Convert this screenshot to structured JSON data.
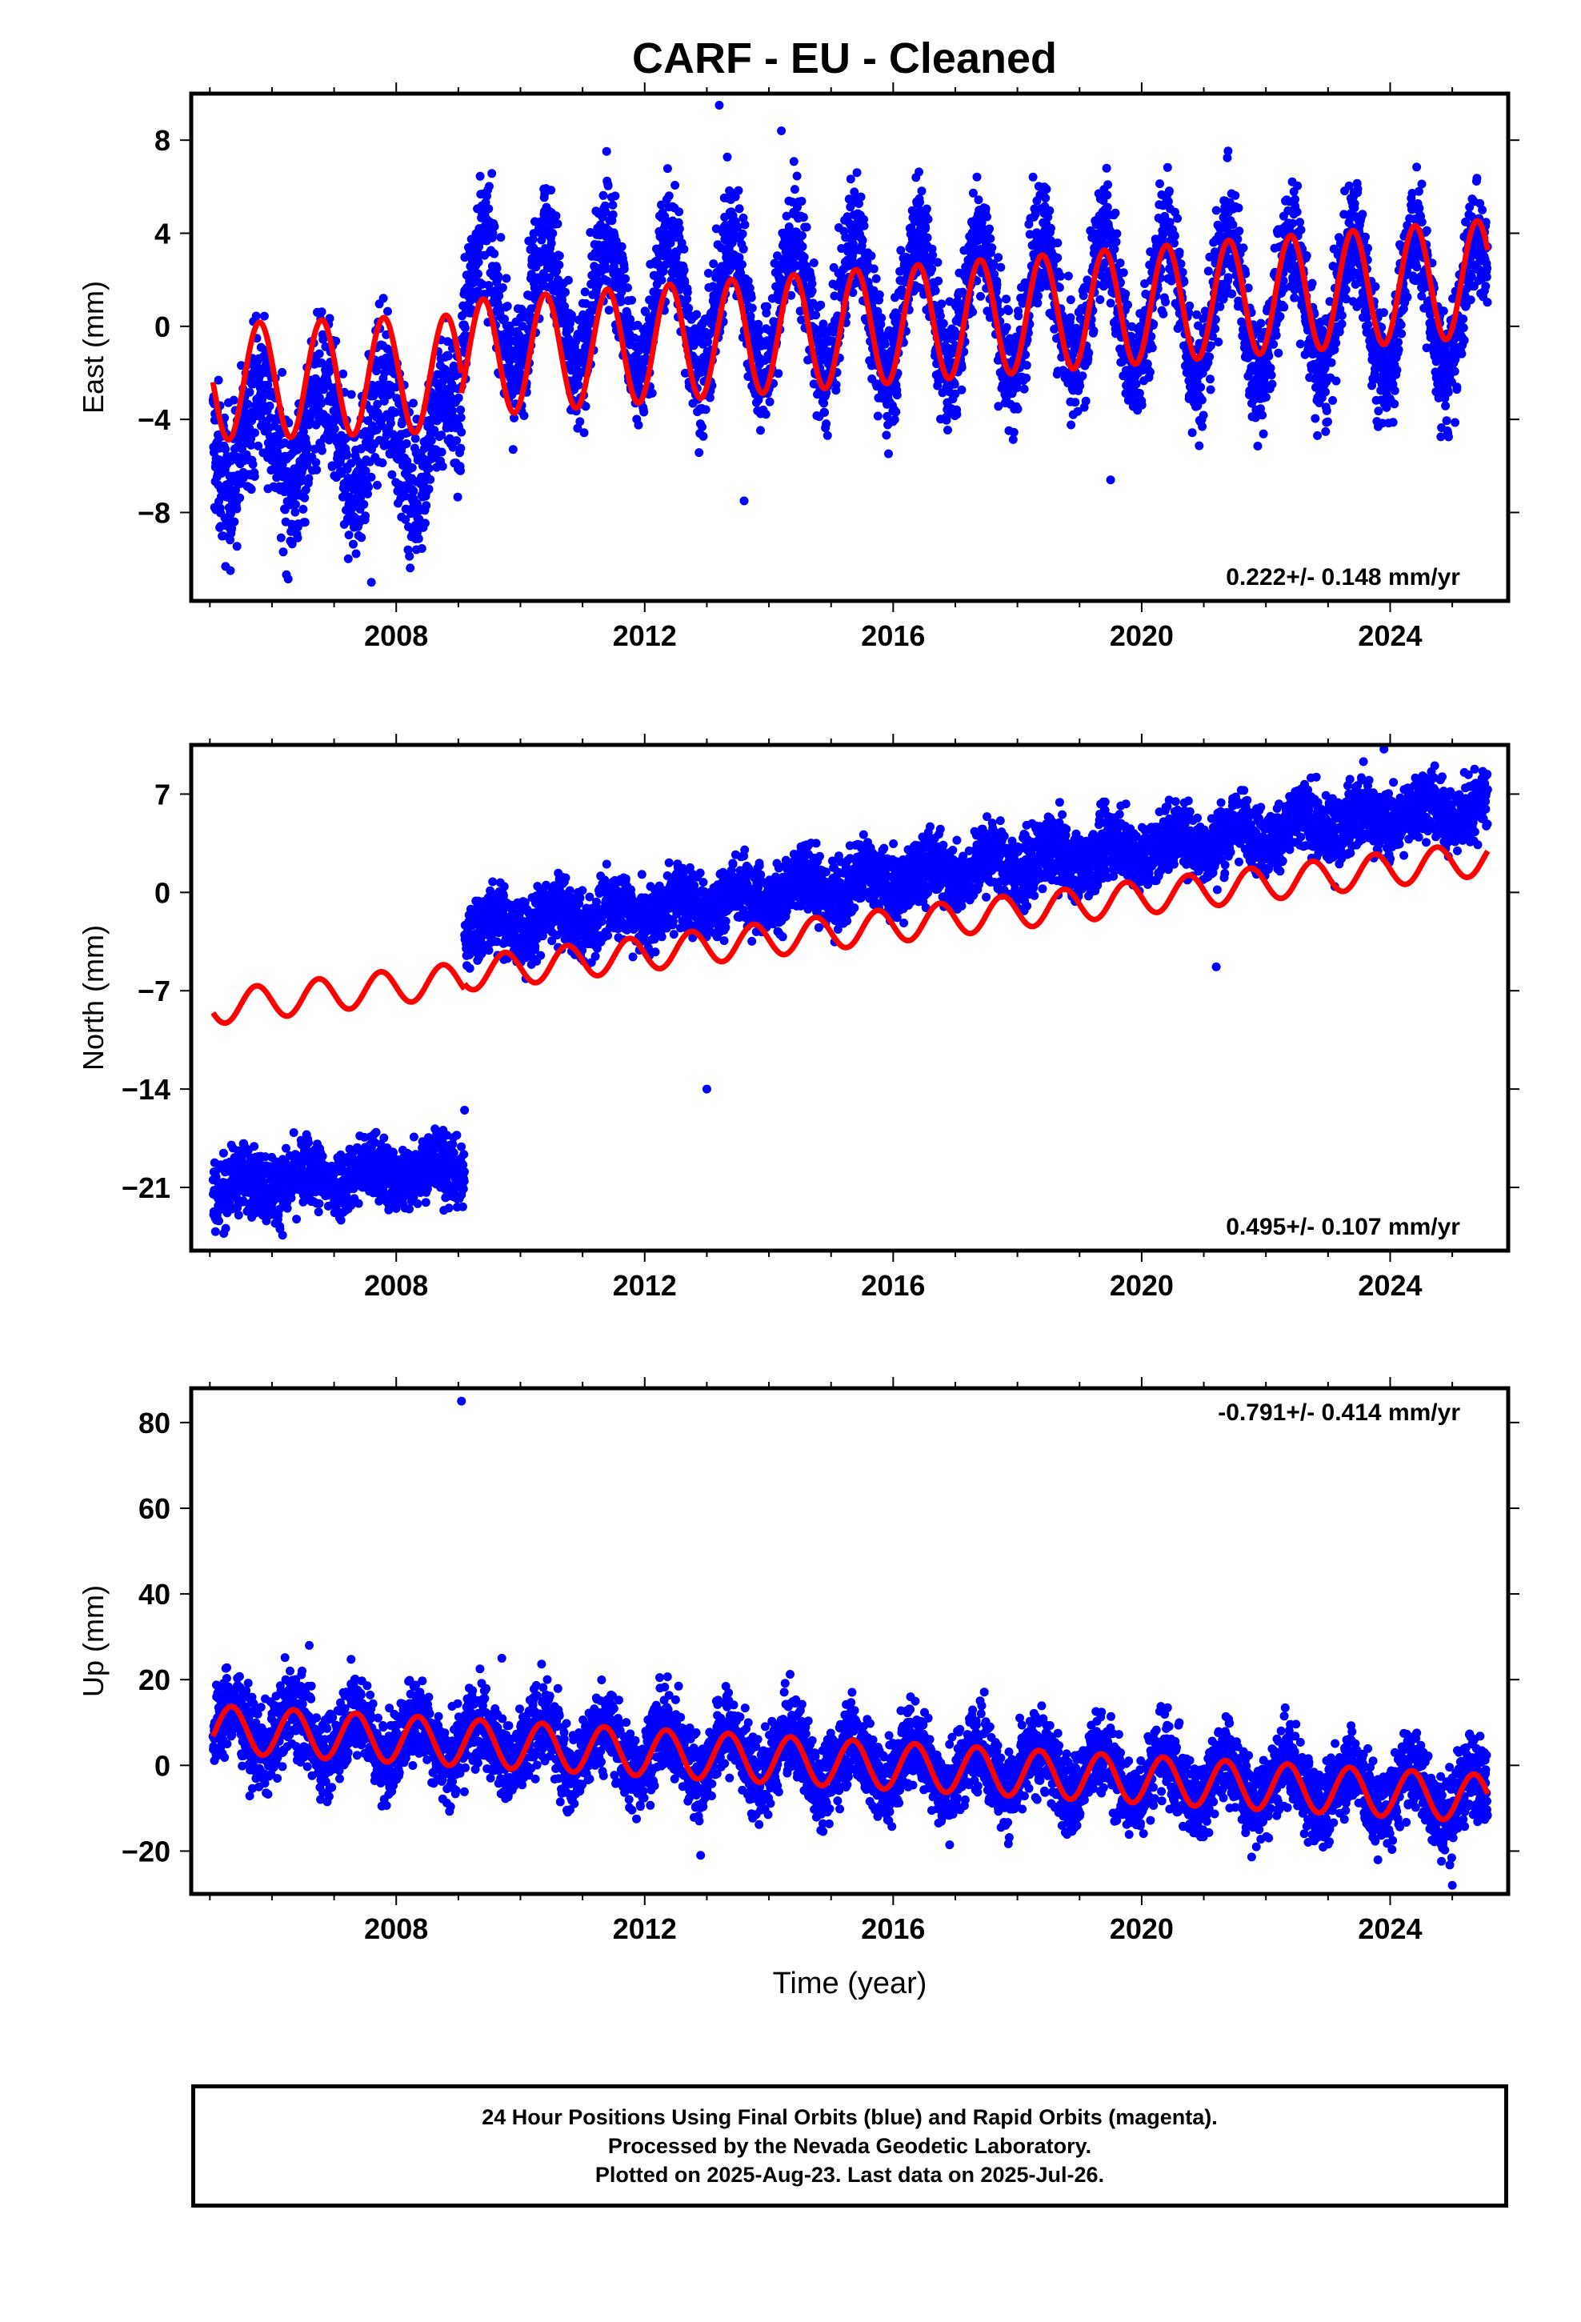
{
  "title": "CARF  - EU - Cleaned",
  "footer": {
    "line1": "24 Hour Positions Using Final Orbits (blue) and Rapid Orbits (magenta).",
    "line2": "Processed by the Nevada Geodetic Laboratory.",
    "line3": "Plotted on 2025-Aug-23. Last data on 2025-Jul-26."
  },
  "colors": {
    "data": "#0000ff",
    "model": "#ff0000",
    "frame": "#000000"
  },
  "chart_data": [
    {
      "type": "scatter",
      "ylabel": "East (mm)",
      "xlabel": "",
      "rate_label": "0.222+/- 0.148 mm/yr",
      "rate_position": "bottom-right",
      "xlim": [
        2004.7,
        2025.9
      ],
      "ylim": [
        -11.8,
        10.0
      ],
      "xticks": [
        2008,
        2012,
        2016,
        2020,
        2024
      ],
      "yticks": [
        8,
        4,
        0,
        -4,
        -8
      ],
      "ytick_labels": [
        "8",
        "4",
        "0",
        "−4",
        "−8"
      ],
      "data_range": [
        2005.05,
        2025.57
      ],
      "series": [
        {
          "kind": "points",
          "color": "#0000ff",
          "segments": [
            {
              "start": 2005.05,
              "end": 2009.05,
              "offset": -4.8,
              "trend": 0.0,
              "amp": 2.1,
              "phase": 0.55,
              "scatter": 1.6
            },
            {
              "start": 2009.05,
              "end": 2025.57,
              "offset": 0.9,
              "trend": 0.0,
              "amp": 3.0,
              "phase": 0.15,
              "scatter": 1.3
            }
          ],
          "outliers": [
            [
              2013.2,
              9.5
            ],
            [
              2013.6,
              -7.5
            ],
            [
              2019.5,
              -6.6
            ],
            [
              2014.2,
              8.4
            ],
            [
              2007.6,
              -11.0
            ]
          ]
        },
        {
          "kind": "line",
          "color": "#ff0000",
          "segments": [
            {
              "start": 2005.05,
              "end": 2009.05,
              "offset": -2.4,
              "trend": 0.1,
              "amp": 2.5,
              "phase": 0.55
            },
            {
              "start": 2009.05,
              "end": 2025.57,
              "offset": -1.4,
              "trend": 0.21,
              "amp": 2.5,
              "phase": 0.15
            }
          ]
        }
      ]
    },
    {
      "type": "scatter",
      "ylabel": "North (mm)",
      "xlabel": "",
      "rate_label": "0.495+/- 0.107 mm/yr",
      "rate_position": "bottom-right",
      "xlim": [
        2004.7,
        2025.9
      ],
      "ylim": [
        -25.5,
        10.5
      ],
      "xticks": [
        2008,
        2012,
        2016,
        2020,
        2024
      ],
      "yticks": [
        7,
        0,
        -7,
        -14,
        -21
      ],
      "ytick_labels": [
        "7",
        "0",
        "−7",
        "−14",
        "−21"
      ],
      "data_range": [
        2005.05,
        2025.57
      ],
      "series": [
        {
          "kind": "points",
          "color": "#0000ff",
          "segments": [
            {
              "start": 2005.05,
              "end": 2009.1,
              "offset": -21.0,
              "trend": 0.38,
              "amp": 0.6,
              "phase": 0.3,
              "scatter": 1.2
            },
            {
              "start": 2009.1,
              "end": 2025.57,
              "offset": -2.8,
              "trend": 0.55,
              "amp": 0.8,
              "phase": 0.3,
              "scatter": 1.2
            }
          ],
          "outliers": [
            [
              2013.0,
              -14.0
            ],
            [
              2021.2,
              -5.3
            ],
            [
              2009.1,
              -15.5
            ],
            [
              2023.9,
              10.2
            ]
          ]
        },
        {
          "kind": "line",
          "color": "#ff0000",
          "segments": [
            {
              "start": 2005.05,
              "end": 2009.1,
              "offset": -8.2,
              "trend": 0.5,
              "amp": 1.2,
              "phase": 0.5
            },
            {
              "start": 2009.1,
              "end": 2025.57,
              "offset": -5.8,
              "trend": 0.5,
              "amp": 1.2,
              "phase": 0.5
            }
          ]
        }
      ]
    },
    {
      "type": "scatter",
      "ylabel": "Up (mm)",
      "xlabel": "Time (year)",
      "rate_label": "-0.791+/- 0.414 mm/yr",
      "rate_position": "top-right",
      "xlim": [
        2004.7,
        2025.9
      ],
      "ylim": [
        -30.0,
        88.0
      ],
      "xticks": [
        2008,
        2012,
        2016,
        2020,
        2024
      ],
      "yticks": [
        80,
        60,
        40,
        20,
        0,
        -20
      ],
      "ytick_labels": [
        "80",
        "60",
        "40",
        "20",
        "0",
        "−20"
      ],
      "data_range": [
        2005.05,
        2025.57
      ],
      "series": [
        {
          "kind": "points",
          "color": "#0000ff",
          "segments": [
            {
              "start": 2005.05,
              "end": 2025.57,
              "offset": 9.0,
              "trend": -0.79,
              "amp": 5.5,
              "phase": 0.1,
              "scatter": 4.8
            }
          ],
          "outliers": [
            [
              2009.05,
              85.0
            ],
            [
              2009.7,
              25.0
            ],
            [
              2006.6,
              28.0
            ],
            [
              2012.9,
              -21.0
            ],
            [
              2025.0,
              -28.0
            ]
          ]
        },
        {
          "kind": "line",
          "color": "#ff0000",
          "segments": [
            {
              "start": 2005.05,
              "end": 2025.57,
              "offset": 8.5,
              "trend": -0.79,
              "amp": 5.5,
              "phase": 0.1
            }
          ]
        }
      ]
    }
  ]
}
